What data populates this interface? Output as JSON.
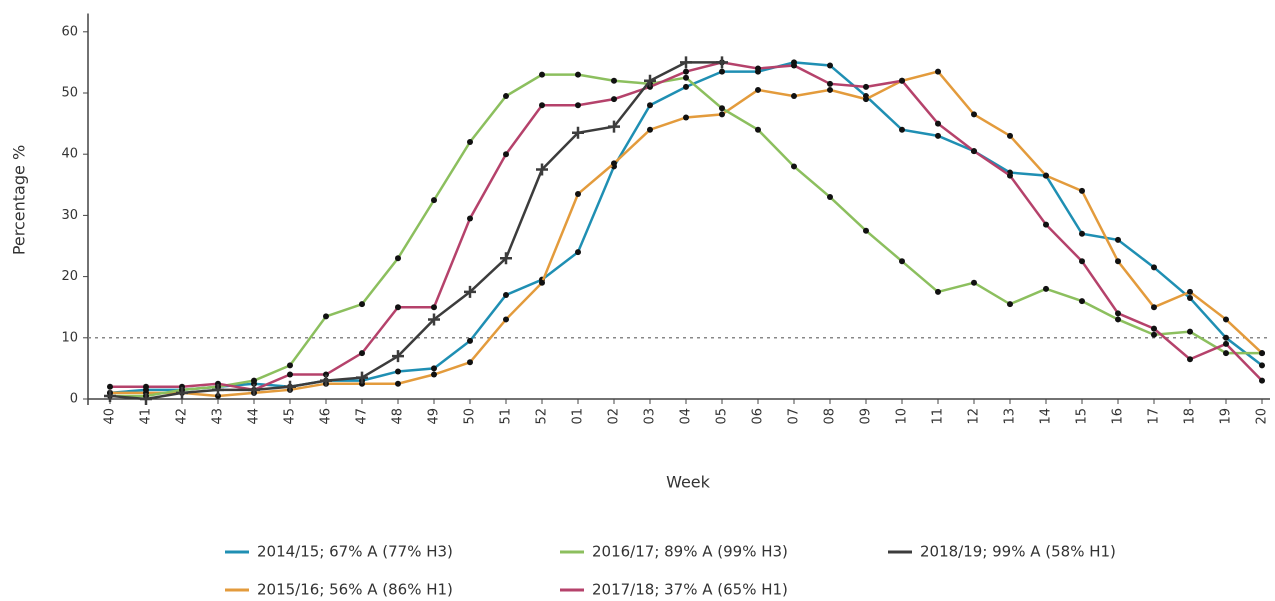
{
  "chart_data": {
    "type": "line",
    "x_label": "Week",
    "y_label": "Percentage %",
    "categories": [
      "40",
      "41",
      "42",
      "43",
      "44",
      "45",
      "46",
      "47",
      "48",
      "49",
      "50",
      "51",
      "52",
      "01",
      "02",
      "03",
      "04",
      "05",
      "06",
      "07",
      "08",
      "09",
      "10",
      "11",
      "12",
      "13",
      "14",
      "15",
      "16",
      "17",
      "18",
      "19",
      "20"
    ],
    "ylim": [
      0,
      63
    ],
    "yticks": [
      0,
      10,
      20,
      30,
      40,
      50,
      60
    ],
    "threshold": 10,
    "series": [
      {
        "name": "2014/15; 67% A (77% H3)",
        "color": "#1f8fb3",
        "marker": "dot",
        "values": [
          1,
          1.5,
          1.5,
          2,
          2.5,
          2,
          3,
          3,
          4.5,
          5,
          9.5,
          17,
          19.5,
          24,
          38,
          48,
          51,
          53.5,
          53.5,
          55,
          54.5,
          49.5,
          44,
          43,
          40.5,
          37,
          36.5,
          27,
          26,
          21.5,
          16.5,
          10,
          5.5
        ]
      },
      {
        "name": "2015/16; 56% A (86% H1)",
        "color": "#e39b3c",
        "marker": "dot",
        "values": [
          1,
          1,
          1,
          0.5,
          1,
          1.5,
          2.5,
          2.5,
          2.5,
          4,
          6,
          13,
          19,
          33.5,
          38.5,
          44,
          46,
          46.5,
          50.5,
          49.5,
          50.5,
          49,
          52,
          53.5,
          46.5,
          43,
          36.5,
          34,
          22.5,
          15,
          17.5,
          13,
          7.5
        ]
      },
      {
        "name": "2016/17; 89% A (99% H3)",
        "color": "#8cbf5e",
        "marker": "dot",
        "values": [
          0.5,
          0.5,
          1.5,
          2,
          3,
          5.5,
          13.5,
          15.5,
          23,
          32.5,
          42,
          49.5,
          53,
          53,
          52,
          51.5,
          52.5,
          47.5,
          44,
          38,
          33,
          27.5,
          22.5,
          17.5,
          19,
          15.5,
          18,
          16,
          13,
          10.5,
          11,
          7.5,
          7.5
        ]
      },
      {
        "name": "2017/18; 37% A (65% H1)",
        "color": "#b5426b",
        "marker": "dot",
        "values": [
          2,
          2,
          2,
          2.5,
          1.5,
          4,
          4,
          7.5,
          15,
          15,
          29.5,
          40,
          48,
          48,
          49,
          51,
          53.5,
          55,
          54,
          54.5,
          51.5,
          51,
          52,
          45,
          40.5,
          36.5,
          28.5,
          22.5,
          14,
          11.5,
          6.5,
          9,
          3
        ]
      },
      {
        "name": "2018/19; 99% A (58% H1)",
        "color": "#3c3c3c",
        "marker": "plus",
        "values": [
          0.5,
          0,
          1,
          1.5,
          1.5,
          2,
          3,
          3.5,
          7,
          13,
          17.5,
          23,
          37.5,
          43.5,
          44.5,
          52,
          55,
          55,
          null,
          null,
          null,
          null,
          null,
          null,
          null,
          null,
          null,
          null,
          null,
          null,
          null,
          null,
          null
        ]
      }
    ]
  }
}
